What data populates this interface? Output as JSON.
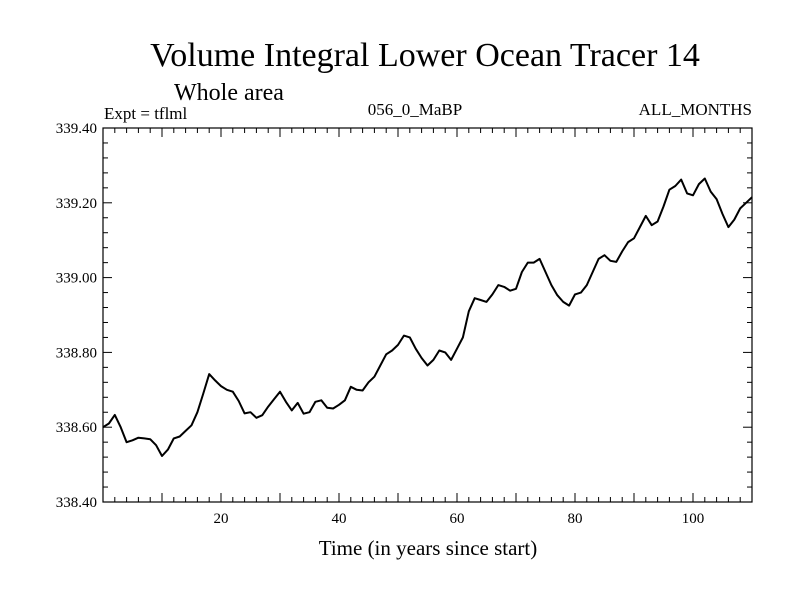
{
  "chart_data": {
    "type": "line",
    "title": "Volume Integral Lower Ocean Tracer 14",
    "subtitle": "Whole area",
    "annotations": {
      "left": "Expt = tflml",
      "center": "056_0_MaBP",
      "right": "ALL_MONTHS"
    },
    "xlabel": "Time (in years since start)",
    "ylabel": "",
    "xlim": [
      0,
      110
    ],
    "ylim": [
      338.4,
      339.4
    ],
    "x_ticks": [
      20,
      40,
      60,
      80,
      100
    ],
    "y_ticks": [
      "338.40",
      "338.60",
      "338.80",
      "339.00",
      "339.20",
      "339.40"
    ],
    "grid": false,
    "series": [
      {
        "name": "tflml",
        "x": [
          0,
          1,
          2,
          3,
          4,
          5,
          6,
          7,
          8,
          9,
          10,
          11,
          12,
          13,
          14,
          15,
          16,
          17,
          18,
          19,
          20,
          21,
          22,
          23,
          24,
          25,
          26,
          27,
          28,
          29,
          30,
          31,
          32,
          33,
          34,
          35,
          36,
          37,
          38,
          39,
          40,
          41,
          42,
          43,
          44,
          45,
          46,
          47,
          48,
          49,
          50,
          51,
          52,
          53,
          54,
          55,
          56,
          57,
          58,
          59,
          60,
          61,
          62,
          63,
          64,
          65,
          66,
          67,
          68,
          69,
          70,
          71,
          72,
          73,
          74,
          75,
          76,
          77,
          78,
          79,
          80,
          81,
          82,
          83,
          84,
          85,
          86,
          87,
          88,
          89,
          90,
          91,
          92,
          93,
          94,
          95,
          96,
          97,
          98,
          99,
          100,
          101,
          102,
          103,
          104,
          105,
          106,
          107,
          108,
          109,
          110
        ],
        "values": [
          338.6,
          338.61,
          338.633,
          338.6,
          338.56,
          338.565,
          338.572,
          338.57,
          338.568,
          338.552,
          338.523,
          338.54,
          338.57,
          338.575,
          338.59,
          338.605,
          338.64,
          338.69,
          338.742,
          338.725,
          338.71,
          338.7,
          338.695,
          338.67,
          338.637,
          338.64,
          338.625,
          338.632,
          338.655,
          338.675,
          338.695,
          338.668,
          338.645,
          338.665,
          338.636,
          338.64,
          338.668,
          338.672,
          338.652,
          338.65,
          338.66,
          338.672,
          338.708,
          338.7,
          338.698,
          338.72,
          338.735,
          338.765,
          338.795,
          338.805,
          338.82,
          338.845,
          338.84,
          338.81,
          338.785,
          338.765,
          338.78,
          338.805,
          338.8,
          338.78,
          338.81,
          338.84,
          338.91,
          338.945,
          338.94,
          338.935,
          338.955,
          338.98,
          338.975,
          338.965,
          338.97,
          339.015,
          339.04,
          339.04,
          339.05,
          339.015,
          338.98,
          338.953,
          338.935,
          338.925,
          338.955,
          338.96,
          338.98,
          339.015,
          339.05,
          339.06,
          339.045,
          339.042,
          339.07,
          339.095,
          339.105,
          339.135,
          339.165,
          339.14,
          339.15,
          339.19,
          339.235,
          339.245,
          339.262,
          339.225,
          339.22,
          339.25,
          339.265,
          339.23,
          339.21,
          339.17,
          339.135,
          339.155,
          339.185,
          339.2,
          339.215
        ]
      }
    ]
  }
}
